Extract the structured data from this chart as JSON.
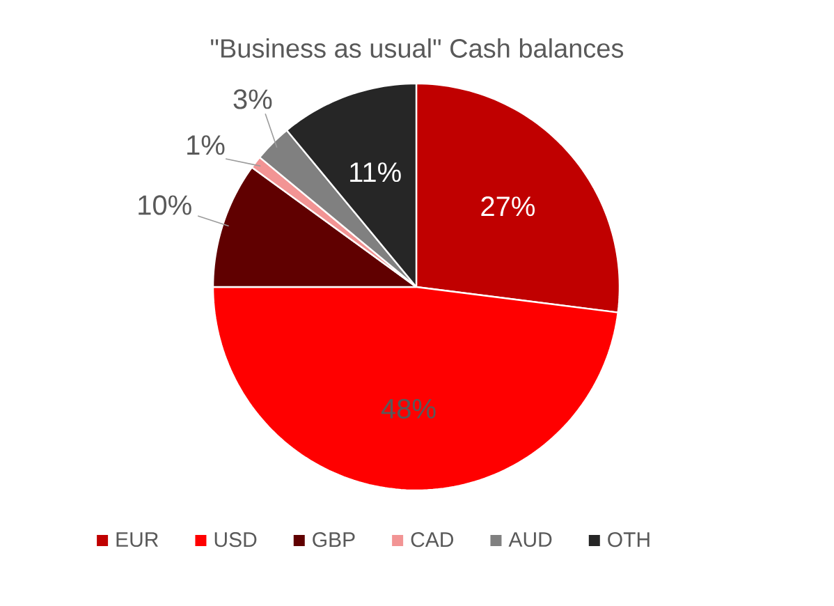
{
  "chart_data": {
    "type": "pie",
    "title": "\"Business as usual\" Cash balances",
    "categories": [
      "EUR",
      "USD",
      "GBP",
      "CAD",
      "AUD",
      "OTH"
    ],
    "values": [
      27,
      48,
      10,
      1,
      3,
      11
    ],
    "colors": [
      "#c00000",
      "#ff0000",
      "#600000",
      "#f29494",
      "#808080",
      "#262626"
    ],
    "value_labels": [
      "27%",
      "48%",
      "10%",
      "1%",
      "3%",
      "11%"
    ],
    "legend": "bottom"
  }
}
